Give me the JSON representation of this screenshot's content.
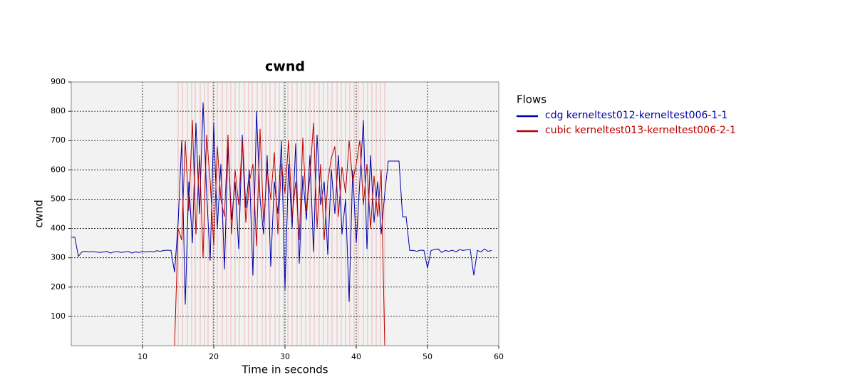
{
  "chart_data": {
    "type": "line",
    "title": "cwnd",
    "xlabel": "Time in seconds",
    "ylabel": "cwnd",
    "legend_title": "Flows",
    "legend": "right",
    "grid": true,
    "xlim": [
      0,
      60
    ],
    "ylim": [
      0,
      900
    ],
    "xticks": [
      10,
      20,
      30,
      40,
      50,
      60
    ],
    "yticks": [
      100,
      200,
      300,
      400,
      500,
      600,
      700,
      800,
      900
    ],
    "x": [
      0,
      0.5,
      1,
      1.5,
      2,
      2.5,
      3,
      3.5,
      4,
      4.5,
      5,
      5.5,
      6,
      6.5,
      7,
      7.5,
      8,
      8.5,
      9,
      9.5,
      10,
      10.5,
      11,
      11.5,
      12,
      12.5,
      13,
      13.5,
      14,
      14.5,
      15,
      15.5,
      16,
      16.5,
      17,
      17.5,
      18,
      18.5,
      19,
      19.5,
      20,
      20.5,
      21,
      21.5,
      22,
      22.5,
      23,
      23.5,
      24,
      24.5,
      25,
      25.5,
      26,
      26.5,
      27,
      27.5,
      28,
      28.5,
      29,
      29.5,
      30,
      30.5,
      31,
      31.5,
      32,
      32.5,
      33,
      33.5,
      34,
      34.5,
      35,
      35.5,
      36,
      36.5,
      37,
      37.5,
      38,
      38.5,
      39,
      39.5,
      40,
      40.5,
      41,
      41.5,
      42,
      42.5,
      43,
      43.5,
      44,
      44.5,
      45,
      45.5,
      46,
      46.5,
      47,
      47.5,
      48,
      48.5,
      49,
      49.5,
      50,
      50.5,
      51,
      51.5,
      52,
      52.5,
      53,
      53.5,
      54,
      54.5,
      55,
      55.5,
      56,
      56.5,
      57,
      57.5,
      58,
      58.5,
      59,
      59.5,
      60
    ],
    "series": [
      {
        "name": "cdg kerneltest012-kerneltest006-1-1",
        "color": "#0000aa",
        "values": [
          370,
          370,
          305,
          320,
          322,
          320,
          321,
          320,
          318,
          320,
          322,
          316,
          320,
          321,
          318,
          320,
          322,
          316,
          320,
          318,
          321,
          320,
          322,
          320,
          324,
          322,
          325,
          326,
          325,
          250,
          420,
          700,
          140,
          560,
          350,
          760,
          450,
          830,
          520,
          290,
          760,
          400,
          620,
          260,
          680,
          430,
          560,
          330,
          720,
          470,
          600,
          240,
          800,
          500,
          380,
          650,
          270,
          560,
          450,
          700,
          190,
          620,
          400,
          690,
          280,
          580,
          430,
          650,
          320,
          720,
          480,
          560,
          310,
          600,
          450,
          650,
          380,
          500,
          150,
          600,
          350,
          560,
          770,
          330,
          650,
          420,
          560,
          380,
          520,
          630,
          630,
          630,
          630,
          440,
          440,
          325,
          325,
          322,
          326,
          325,
          265,
          325,
          328,
          330,
          318,
          325,
          322,
          326,
          320,
          328,
          325,
          327,
          328,
          240,
          325,
          320,
          330,
          322,
          325,
          null,
          null
        ]
      },
      {
        "name": "cubic kerneltest013-kerneltest006-2-1",
        "color": "#bb0000",
        "values": [
          0,
          0,
          0,
          0,
          0,
          0,
          0,
          0,
          0,
          0,
          0,
          0,
          0,
          0,
          0,
          0,
          0,
          0,
          0,
          0,
          0,
          0,
          0,
          0,
          0,
          0,
          0,
          0,
          0,
          0,
          400,
          360,
          700,
          460,
          770,
          380,
          650,
          300,
          720,
          560,
          340,
          680,
          500,
          440,
          720,
          380,
          600,
          480,
          700,
          420,
          560,
          620,
          340,
          740,
          420,
          600,
          500,
          660,
          380,
          620,
          520,
          700,
          440,
          560,
          360,
          710,
          460,
          580,
          760,
          400,
          620,
          360,
          560,
          640,
          680,
          440,
          610,
          520,
          700,
          560,
          620,
          700,
          480,
          620,
          400,
          580,
          440,
          600,
          0,
          0,
          0,
          0,
          0,
          0,
          0,
          0,
          0,
          0,
          0,
          0,
          0,
          0,
          0,
          0,
          0,
          0,
          0,
          0,
          0,
          0,
          0,
          0,
          0,
          0,
          0,
          0,
          0,
          0,
          0,
          0,
          0
        ]
      }
    ],
    "event_color": "#f0b8b8",
    "events_x": [
      15.0,
      15.6,
      16.3,
      16.9,
      17.4,
      18.1,
      18.7,
      19.2,
      19.9,
      20.5,
      21.2,
      21.8,
      22.4,
      23.0,
      23.6,
      24.3,
      24.9,
      25.4,
      26.1,
      26.8,
      27.3,
      27.9,
      28.6,
      29.2,
      29.8,
      30.4,
      31.0,
      31.7,
      32.3,
      32.9,
      33.5,
      34.1,
      34.8,
      35.4,
      36.0,
      36.6,
      37.3,
      37.9,
      38.5,
      39.1,
      39.7,
      40.3,
      41.0,
      41.6,
      42.2,
      42.8,
      43.4,
      44.0
    ]
  }
}
